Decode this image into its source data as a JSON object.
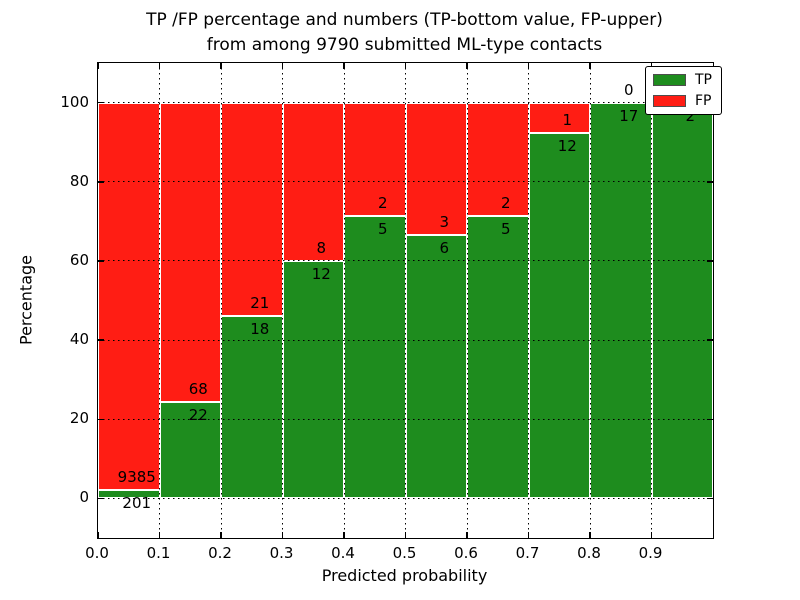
{
  "chart_data": {
    "type": "bar",
    "subtype": "stacked-percentage-histogram",
    "title_line1": "TP /FP percentage and numbers (TP-bottom value, FP-upper)",
    "title_line2": "from among 9790 submitted ML-type contacts",
    "xlabel": "Predicted probability",
    "ylabel": "Percentage",
    "total_contacts": 9790,
    "x_tick_labels": [
      "0.0",
      "0.1",
      "0.2",
      "0.3",
      "0.4",
      "0.5",
      "0.6",
      "0.7",
      "0.8",
      "0.9"
    ],
    "y_tick_labels": [
      "0",
      "20",
      "40",
      "60",
      "80",
      "100"
    ],
    "y_tick_values": [
      0,
      20,
      40,
      60,
      80,
      100
    ],
    "xlim": [
      0.0,
      1.0
    ],
    "ylim": [
      -10,
      110
    ],
    "bin_width": 0.1,
    "grid": "dotted",
    "categories": [
      "0.0-0.1",
      "0.1-0.2",
      "0.2-0.3",
      "0.3-0.4",
      "0.4-0.5",
      "0.5-0.6",
      "0.6-0.7",
      "0.7-0.8",
      "0.8-0.9",
      "0.9-1.0"
    ],
    "series": [
      {
        "name": "TP",
        "color": "#1e8c1e",
        "counts": [
          201,
          22,
          18,
          12,
          5,
          6,
          5,
          12,
          17,
          2
        ]
      },
      {
        "name": "FP",
        "color": "#ff1d14",
        "counts": [
          9385,
          68,
          21,
          8,
          2,
          3,
          2,
          1,
          0,
          0
        ]
      }
    ],
    "tp_percent_of_bin": [
      2.1,
      24.4,
      46.2,
      60.0,
      71.4,
      66.7,
      71.4,
      92.3,
      100.0,
      100.0
    ],
    "tp_labels": [
      "201",
      "22",
      "18",
      "12",
      "5",
      "6",
      "5",
      "12",
      "17",
      "2"
    ],
    "fp_labels": [
      "9385",
      "68",
      "21",
      "8",
      "2",
      "3",
      "2",
      "1",
      "0",
      ""
    ],
    "legend": {
      "position": "upper-right",
      "items": [
        {
          "label": "TP",
          "color": "#1e8c1e"
        },
        {
          "label": "FP",
          "color": "#ff1d14"
        }
      ]
    }
  }
}
